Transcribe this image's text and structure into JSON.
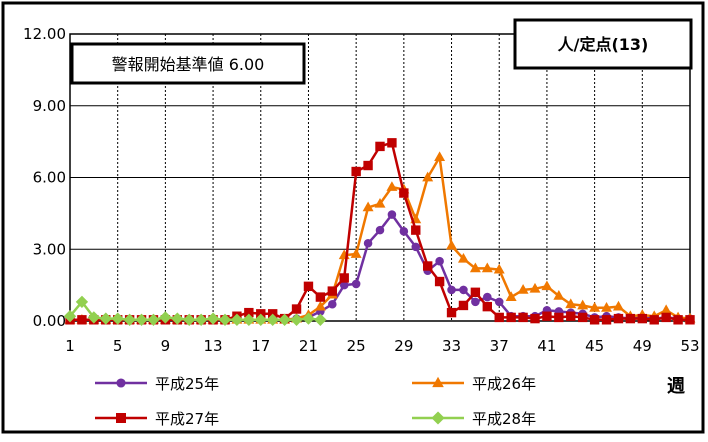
{
  "chart_data": {
    "type": "line",
    "title": "",
    "xlabel": "週",
    "ylabel": "",
    "unit_box": "人/定点(13)",
    "annotation_box": "警報開始基準値 6.00",
    "ylim": [
      0,
      12
    ],
    "xlim": [
      1,
      53
    ],
    "y_ticks": [
      "0.00",
      "3.00",
      "6.00",
      "9.00",
      "12.00"
    ],
    "x_ticks": [
      "1",
      "5",
      "9",
      "13",
      "17",
      "21",
      "25",
      "29",
      "33",
      "37",
      "41",
      "45",
      "49",
      "53"
    ],
    "grid": true,
    "legend_position": "bottom",
    "series": [
      {
        "name": "平成25年",
        "color": "#7030A0",
        "marker": "circle",
        "x": [
          1,
          2,
          3,
          4,
          5,
          6,
          7,
          8,
          9,
          10,
          11,
          12,
          13,
          14,
          15,
          16,
          17,
          18,
          19,
          20,
          21,
          22,
          23,
          24,
          25,
          26,
          27,
          28,
          29,
          30,
          31,
          32,
          33,
          34,
          35,
          36,
          37,
          38,
          39,
          40,
          41,
          42,
          43,
          44,
          45,
          46,
          47,
          48,
          49,
          50,
          51,
          52,
          53
        ],
        "values": [
          0.05,
          0.05,
          0.05,
          0.05,
          0.05,
          0.05,
          0.05,
          0.05,
          0.05,
          0.05,
          0.05,
          0.05,
          0.05,
          0.05,
          0.05,
          0.05,
          0.05,
          0.05,
          0.05,
          0.1,
          0.15,
          0.4,
          0.7,
          1.5,
          1.55,
          3.25,
          3.8,
          4.45,
          3.75,
          3.1,
          2.1,
          2.5,
          1.3,
          1.3,
          0.8,
          1.0,
          0.8,
          0.2,
          0.2,
          0.2,
          0.45,
          0.4,
          0.35,
          0.3,
          0.15,
          0.2,
          0.15,
          0.1,
          0.15,
          0.1,
          0.15,
          0.1,
          0.1
        ]
      },
      {
        "name": "平成26年",
        "color": "#F07800",
        "marker": "triangle",
        "x": [
          1,
          2,
          3,
          4,
          5,
          6,
          7,
          8,
          9,
          10,
          11,
          12,
          13,
          14,
          15,
          16,
          17,
          18,
          19,
          20,
          21,
          22,
          23,
          24,
          25,
          26,
          27,
          28,
          29,
          30,
          31,
          32,
          33,
          34,
          35,
          36,
          37,
          38,
          39,
          40,
          41,
          42,
          43,
          44,
          45,
          46,
          47,
          48,
          49,
          50,
          51,
          52,
          53
        ],
        "values": [
          0.05,
          0.05,
          0.05,
          0.05,
          0.05,
          0.05,
          0.05,
          0.05,
          0.05,
          0.05,
          0.05,
          0.05,
          0.05,
          0.05,
          0.05,
          0.05,
          0.05,
          0.05,
          0.05,
          0.1,
          0.25,
          0.6,
          1.1,
          2.75,
          2.8,
          4.75,
          4.9,
          5.6,
          5.5,
          4.25,
          6.0,
          6.85,
          3.15,
          2.6,
          2.2,
          2.2,
          2.15,
          1.0,
          1.3,
          1.35,
          1.45,
          1.05,
          0.7,
          0.65,
          0.55,
          0.55,
          0.6,
          0.2,
          0.25,
          0.2,
          0.45,
          0.15,
          0.1
        ]
      },
      {
        "name": "平成27年",
        "color": "#C00000",
        "marker": "square",
        "x": [
          1,
          2,
          3,
          4,
          5,
          6,
          7,
          8,
          9,
          10,
          11,
          12,
          13,
          14,
          15,
          16,
          17,
          18,
          19,
          20,
          21,
          22,
          23,
          24,
          25,
          26,
          27,
          28,
          29,
          30,
          31,
          32,
          33,
          34,
          35,
          36,
          37,
          38,
          39,
          40,
          41,
          42,
          43,
          44,
          45,
          46,
          47,
          48,
          49,
          50,
          51,
          52,
          53
        ],
        "values": [
          0.05,
          0.05,
          0.05,
          0.05,
          0.05,
          0.05,
          0.05,
          0.05,
          0.05,
          0.05,
          0.05,
          0.05,
          0.05,
          0.05,
          0.2,
          0.35,
          0.3,
          0.3,
          0.1,
          0.5,
          1.45,
          1.0,
          1.25,
          1.8,
          6.25,
          6.5,
          7.3,
          7.45,
          5.35,
          3.8,
          2.3,
          1.65,
          0.35,
          0.65,
          1.2,
          0.6,
          0.15,
          0.15,
          0.15,
          0.1,
          0.2,
          0.15,
          0.2,
          0.15,
          0.05,
          0.05,
          0.1,
          0.1,
          0.1,
          0.05,
          0.15,
          0.05,
          0.05
        ]
      },
      {
        "name": "平成28年",
        "color": "#92D050",
        "marker": "diamond",
        "x": [
          1,
          2,
          3,
          4,
          5,
          6,
          7,
          8,
          9,
          10,
          11,
          12,
          13,
          14,
          15,
          16,
          17,
          18,
          19,
          20,
          21,
          22
        ],
        "values": [
          0.2,
          0.8,
          0.15,
          0.1,
          0.1,
          0.05,
          0.05,
          0.05,
          0.15,
          0.1,
          0.05,
          0.05,
          0.1,
          0.05,
          0.05,
          0.05,
          0.05,
          0.05,
          0.05,
          0.05,
          0.1,
          0.05
        ]
      }
    ]
  }
}
